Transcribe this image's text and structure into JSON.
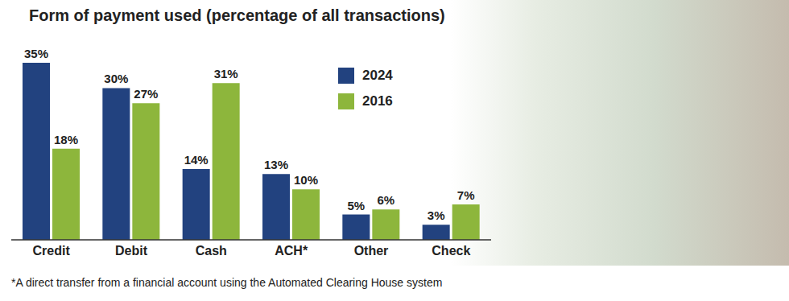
{
  "chart_data": {
    "type": "bar",
    "title": "Form of payment used (percentage of all transactions)",
    "categories": [
      "Credit",
      "Debit",
      "Cash",
      "ACH*",
      "Other",
      "Check"
    ],
    "series": [
      {
        "name": "2024",
        "color": "#22427f",
        "values": [
          35,
          30,
          14,
          13,
          5,
          3
        ],
        "value_labels": [
          "35%",
          "30%",
          "14%",
          "13%",
          "5%",
          "3%"
        ]
      },
      {
        "name": "2016",
        "color": "#8db63c",
        "values": [
          18,
          27,
          31,
          10,
          6,
          7
        ],
        "value_labels": [
          "18%",
          "27%",
          "31%",
          "10%",
          "6%",
          "7%"
        ]
      }
    ],
    "ylim": [
      0,
      35
    ],
    "yticks": [
      0,
      35
    ],
    "grid": false,
    "legend": "top",
    "data_labels": true,
    "tick_labels": "x",
    "annotations": [
      "*A direct transfer from a financial account using the Automated Clearing House system"
    ]
  }
}
